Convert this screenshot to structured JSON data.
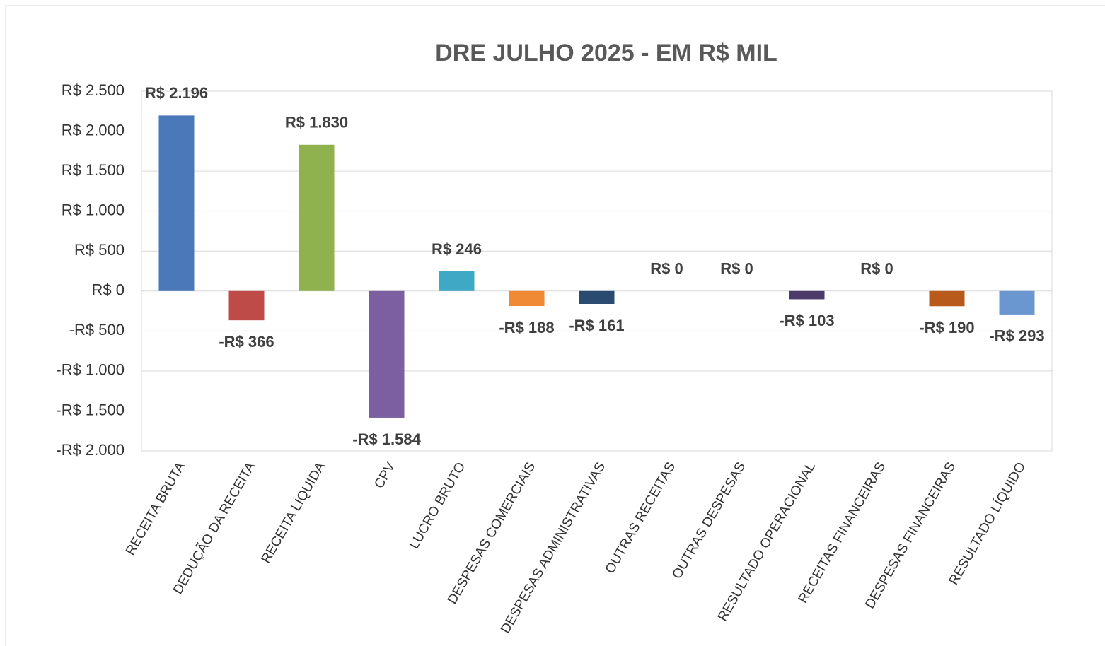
{
  "chart_data": {
    "type": "bar",
    "title": "DRE JULHO 2025 - EM R$ MIL",
    "categories": [
      "RECEITA BRUTA",
      "DEDUÇÃO DA RECEITA",
      "RECEITA LÍQUIDA",
      "CPV",
      "LUCRO BRUTO",
      "DESPESAS COMERCIAIS",
      "DESPESAS ADMINISTRATIVAS",
      "OUTRAS RECEITAS",
      "OUTRAS DESPESAS",
      "RESULTADO OPERACIONAL",
      "RECEITAS FINANCEIRAS",
      "DESPESAS FINANCEIRAS",
      "RESULTADO LÍQUIDO"
    ],
    "values": [
      2196,
      -366,
      1830,
      -1584,
      246,
      -188,
      -161,
      0,
      0,
      -103,
      0,
      -190,
      -293
    ],
    "value_labels": [
      "R$ 2.196",
      "-R$ 366",
      "R$ 1.830",
      "-R$ 1.584",
      "R$ 246",
      "-R$ 188",
      "-R$ 161",
      "R$ 0",
      "R$ 0",
      "-R$ 103",
      "R$ 0",
      "-R$ 190",
      "-R$ 293"
    ],
    "colors": [
      "#4a78b8",
      "#bf4b48",
      "#8fb24e",
      "#7b5fa0",
      "#3fa8c4",
      "#f08a35",
      "#2b4a70",
      "#eeeeee",
      "#eeeeee",
      "#4b3a6a",
      "#eeeeee",
      "#b85a1b",
      "#6a97d0"
    ],
    "ylim": [
      -2000,
      2500
    ],
    "yticks": [
      {
        "value": -2000,
        "label": "-R$ 2.000"
      },
      {
        "value": -1500,
        "label": "-R$ 1.500"
      },
      {
        "value": -1000,
        "label": "-R$ 1.000"
      },
      {
        "value": -500,
        "label": "-R$ 500"
      },
      {
        "value": 0,
        "label": "R$ 0"
      },
      {
        "value": 500,
        "label": "R$ 500"
      },
      {
        "value": 1000,
        "label": "R$ 1.000"
      },
      {
        "value": 1500,
        "label": "R$ 1.500"
      },
      {
        "value": 2000,
        "label": "R$ 2.000"
      },
      {
        "value": 2500,
        "label": "R$ 2.500"
      }
    ],
    "grid": true
  }
}
